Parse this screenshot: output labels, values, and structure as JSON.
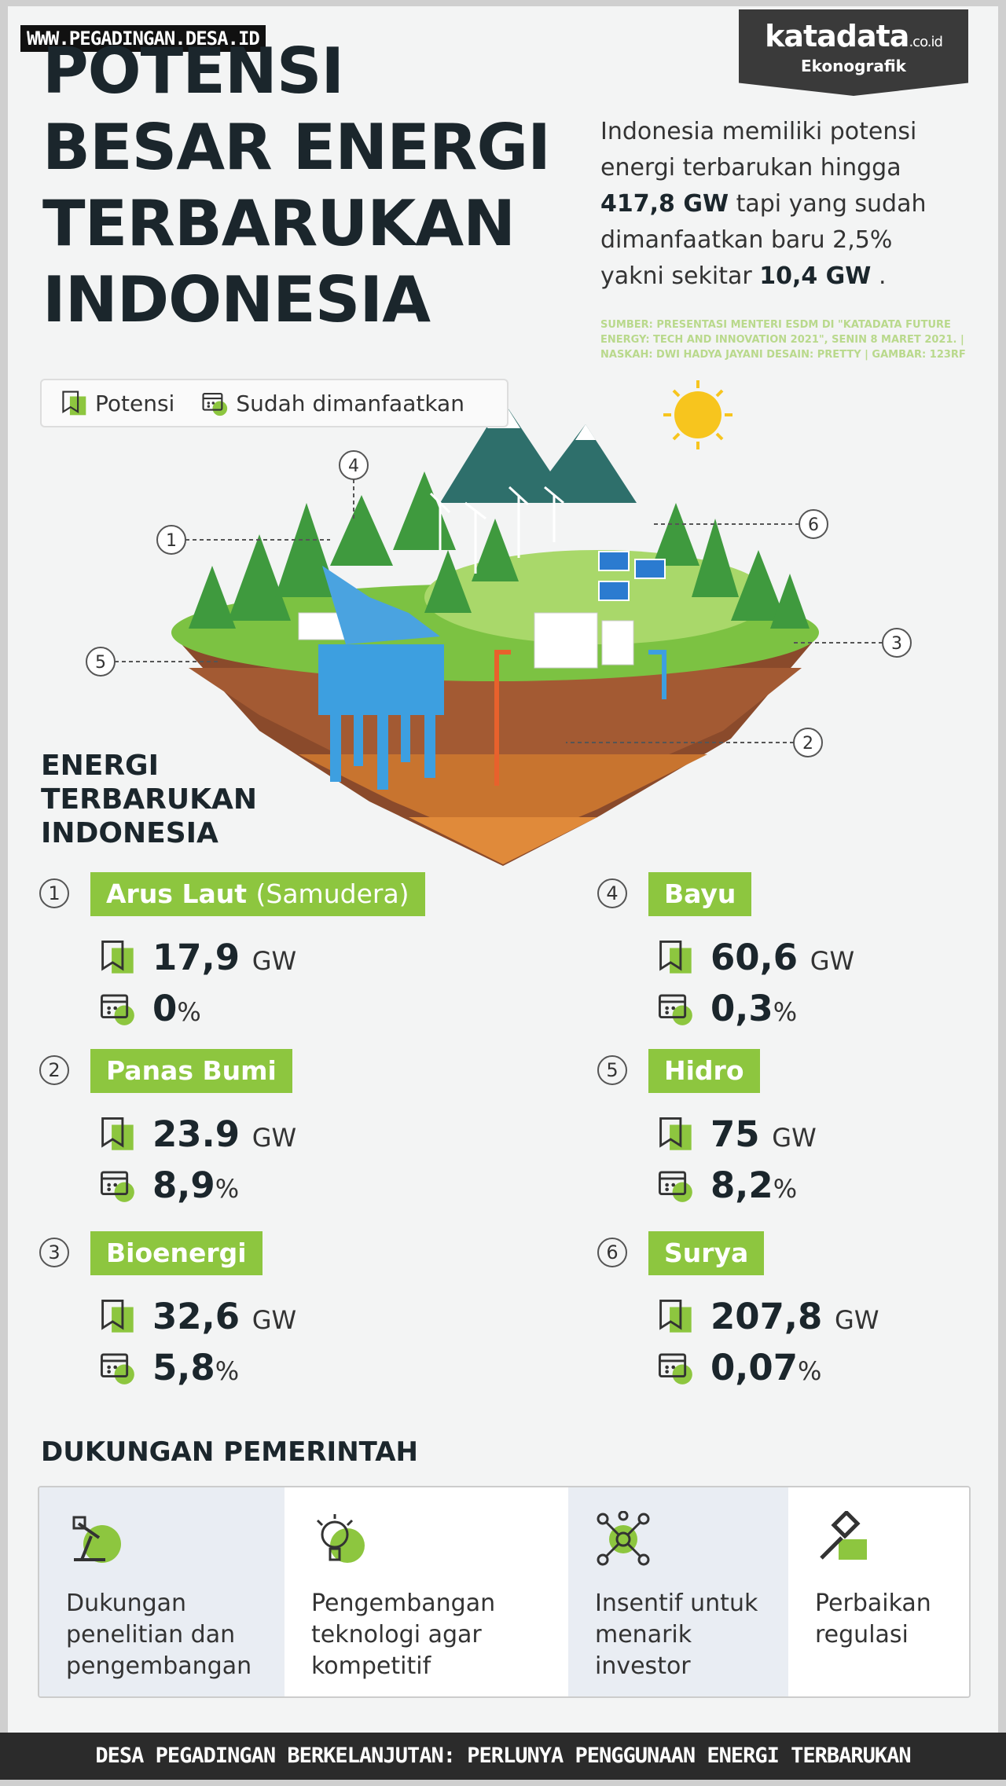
{
  "watermark": "WWW.PEGADINGAN.DESA.ID",
  "brand": {
    "name": "katadata",
    "suffix": ".co.id",
    "section": "Ekonografik"
  },
  "header": {
    "title_lines": [
      "POTENSI",
      "BESAR ENERGI",
      "TERBARUKAN",
      "INDONESIA"
    ],
    "intro": [
      {
        "text": "Indonesia memiliki potensi energi terbarukan hingga",
        "bold": false
      },
      {
        "text": "417,8 GW",
        "bold": true
      },
      {
        "text": "tapi yang sudah dimanfaatkan baru 2,5% yakni sekitar",
        "bold": false
      },
      {
        "text": "10,4 GW",
        "bold": true
      },
      {
        "text": ".",
        "bold": false
      }
    ],
    "source": "SUMBER: PRESENTASI MENTERI ESDM DI \"KATADATA FUTURE ENERGY: TECH AND INNOVATION 2021\", SENIN 8 MARET 2021. | NASKAH: DWI HADYA JAYANI DESAIN: PRETTY | GAMBAR: 123RF"
  },
  "legend": [
    "Potensi",
    "Sudah dimanfaatkan"
  ],
  "section_title": [
    "ENERGI",
    "TERBARUKAN",
    "INDONESIA"
  ],
  "items": [
    {
      "number": "1",
      "name": "Arus Laut",
      "name_extra": "(Samudera)",
      "potential": "17,9",
      "potential_unit": "GW",
      "used": "0",
      "used_unit": "%"
    },
    {
      "number": "2",
      "name": "Panas Bumi",
      "potential": "23.9",
      "potential_unit": "GW",
      "used": "8,9",
      "used_unit": "%"
    },
    {
      "number": "3",
      "name": "Bioenergi",
      "potential": "32,6",
      "potential_unit": "GW",
      "used": "5,8",
      "used_unit": "%"
    },
    {
      "number": "4",
      "name": "Bayu",
      "potential": "60,6",
      "potential_unit": "GW",
      "used": "0,3",
      "used_unit": "%"
    },
    {
      "number": "5",
      "name": "Hidro",
      "potential": "75",
      "potential_unit": "GW",
      "used": "8,2",
      "used_unit": "%"
    },
    {
      "number": "6",
      "name": "Surya",
      "potential": "207,8",
      "potential_unit": "GW",
      "used": "0,07",
      "used_unit": "%"
    }
  ],
  "support": {
    "title": "DUKUNGAN PEMERINTAH",
    "items": [
      "Dukungan penelitian dan pengembangan",
      "Pengembangan teknologi agar kompetitif",
      "Insentif untuk menarik investor",
      "Perbaikan regulasi"
    ]
  },
  "caption": "DESA PEGADINGAN BERKELANJUTAN: PERLUNYA PENGGUNAAN ENERGI TERBARUKAN"
}
